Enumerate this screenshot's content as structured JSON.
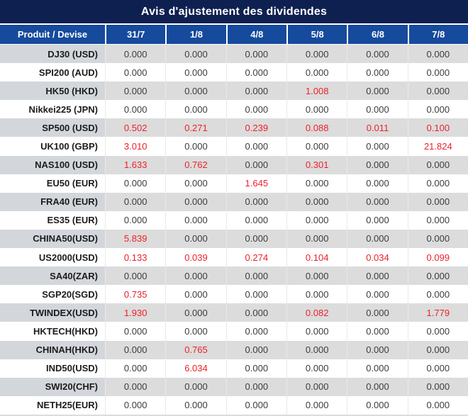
{
  "title": "Avis d'ajustement des dividendes",
  "zero_value": "0.000",
  "colors": {
    "title_bar_bg": "#0e2050",
    "header_bg": "#164a9c",
    "stripe_bg": "#dcdcdc",
    "stripe_first_col_bg": "#d3d7dc",
    "value_text": "#3c3c3c",
    "nonzero_value_text": "#ee2129"
  },
  "table": {
    "header": [
      "Produit / Devise",
      "31/7",
      "1/8",
      "4/8",
      "5/8",
      "6/8",
      "7/8"
    ],
    "rows": [
      {
        "product": "DJ30 (USD)",
        "values": [
          "0.000",
          "0.000",
          "0.000",
          "0.000",
          "0.000",
          "0.000"
        ]
      },
      {
        "product": "SPI200 (AUD)",
        "values": [
          "0.000",
          "0.000",
          "0.000",
          "0.000",
          "0.000",
          "0.000"
        ]
      },
      {
        "product": "HK50 (HKD)",
        "values": [
          "0.000",
          "0.000",
          "0.000",
          "1.008",
          "0.000",
          "0.000"
        ]
      },
      {
        "product": "Nikkei225 (JPN)",
        "values": [
          "0.000",
          "0.000",
          "0.000",
          "0.000",
          "0.000",
          "0.000"
        ]
      },
      {
        "product": "SP500 (USD)",
        "values": [
          "0.502",
          "0.271",
          "0.239",
          "0.088",
          "0.011",
          "0.100"
        ]
      },
      {
        "product": "UK100 (GBP)",
        "values": [
          "3.010",
          "0.000",
          "0.000",
          "0.000",
          "0.000",
          "21.824"
        ]
      },
      {
        "product": "NAS100 (USD)",
        "values": [
          "1.633",
          "0.762",
          "0.000",
          "0.301",
          "0.000",
          "0.000"
        ]
      },
      {
        "product": "EU50 (EUR)",
        "values": [
          "0.000",
          "0.000",
          "1.645",
          "0.000",
          "0.000",
          "0.000"
        ]
      },
      {
        "product": "FRA40 (EUR)",
        "values": [
          "0.000",
          "0.000",
          "0.000",
          "0.000",
          "0.000",
          "0.000"
        ]
      },
      {
        "product": "ES35 (EUR)",
        "values": [
          "0.000",
          "0.000",
          "0.000",
          "0.000",
          "0.000",
          "0.000"
        ]
      },
      {
        "product": "CHINA50(USD)",
        "values": [
          "5.839",
          "0.000",
          "0.000",
          "0.000",
          "0.000",
          "0.000"
        ]
      },
      {
        "product": "US2000(USD)",
        "values": [
          "0.133",
          "0.039",
          "0.274",
          "0.104",
          "0.034",
          "0.099"
        ]
      },
      {
        "product": "SA40(ZAR)",
        "values": [
          "0.000",
          "0.000",
          "0.000",
          "0.000",
          "0.000",
          "0.000"
        ]
      },
      {
        "product": "SGP20(SGD)",
        "values": [
          "0.735",
          "0.000",
          "0.000",
          "0.000",
          "0.000",
          "0.000"
        ]
      },
      {
        "product": "TWINDEX(USD)",
        "values": [
          "1.930",
          "0.000",
          "0.000",
          "0.082",
          "0.000",
          "1.779"
        ]
      },
      {
        "product": "HKTECH(HKD)",
        "values": [
          "0.000",
          "0.000",
          "0.000",
          "0.000",
          "0.000",
          "0.000"
        ]
      },
      {
        "product": "CHINAH(HKD)",
        "values": [
          "0.000",
          "0.765",
          "0.000",
          "0.000",
          "0.000",
          "0.000"
        ]
      },
      {
        "product": "IND50(USD)",
        "values": [
          "0.000",
          "6.034",
          "0.000",
          "0.000",
          "0.000",
          "0.000"
        ]
      },
      {
        "product": "SWI20(CHF)",
        "values": [
          "0.000",
          "0.000",
          "0.000",
          "0.000",
          "0.000",
          "0.000"
        ]
      },
      {
        "product": "NETH25(EUR)",
        "values": [
          "0.000",
          "0.000",
          "0.000",
          "0.000",
          "0.000",
          "0.000"
        ]
      }
    ]
  }
}
